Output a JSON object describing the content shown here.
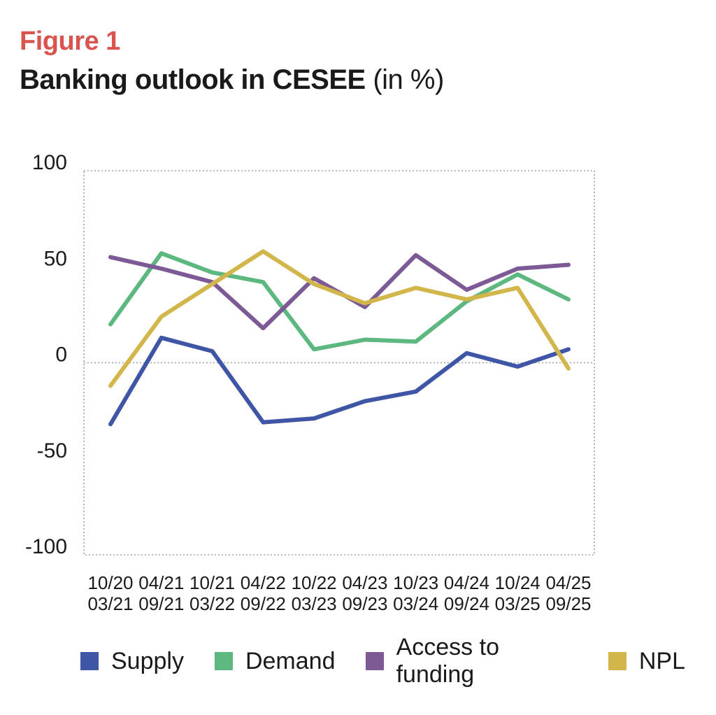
{
  "figure_label": "Figure 1",
  "title_bold": "Banking outlook in CESEE",
  "title_rest": " (in %)",
  "colors": {
    "figure_label": "#d9534f",
    "supply": "#3f55a6",
    "demand": "#5cb87f",
    "access": "#7d5a95",
    "npl": "#d2b64c",
    "grid": "#a0a0a0"
  },
  "chart_data": {
    "type": "line",
    "x": [
      "10/20 03/21",
      "04/21 09/21",
      "10/21 03/22",
      "04/22 09/22",
      "10/22 03/23",
      "04/23 09/23",
      "10/23 03/24",
      "04/24 09/24",
      "10/24 03/25",
      "04/25 09/25"
    ],
    "x_tick_lines": [
      [
        "10/20",
        "03/21"
      ],
      [
        "04/21",
        "09/21"
      ],
      [
        "10/21",
        "03/22"
      ],
      [
        "04/22",
        "09/22"
      ],
      [
        "10/22",
        "03/23"
      ],
      [
        "04/23",
        "09/23"
      ],
      [
        "10/23",
        "03/24"
      ],
      [
        "04/24",
        "09/24"
      ],
      [
        "10/24",
        "03/25"
      ],
      [
        "04/25",
        "09/25"
      ]
    ],
    "yticks": [
      "100",
      "50",
      "0",
      "-50",
      "-100"
    ],
    "ylim": [
      -100,
      100
    ],
    "grid": "dotted border and zero line",
    "legend_position": "bottom",
    "series": [
      {
        "name": "Supply",
        "key": "supply",
        "values": [
          -32,
          13,
          6,
          -31,
          -29,
          -20,
          -15,
          5,
          -2,
          7
        ]
      },
      {
        "name": "Demand",
        "key": "demand",
        "values": [
          20,
          57,
          47,
          42,
          7,
          12,
          11,
          32,
          46,
          33
        ]
      },
      {
        "name": "Access to funding",
        "key": "access",
        "values": [
          55,
          49,
          42,
          18,
          44,
          29,
          56,
          38,
          49,
          51
        ]
      },
      {
        "name": "NPL",
        "key": "npl",
        "values": [
          -12,
          24,
          41,
          58,
          41,
          31,
          39,
          33,
          39,
          -3
        ]
      }
    ]
  }
}
